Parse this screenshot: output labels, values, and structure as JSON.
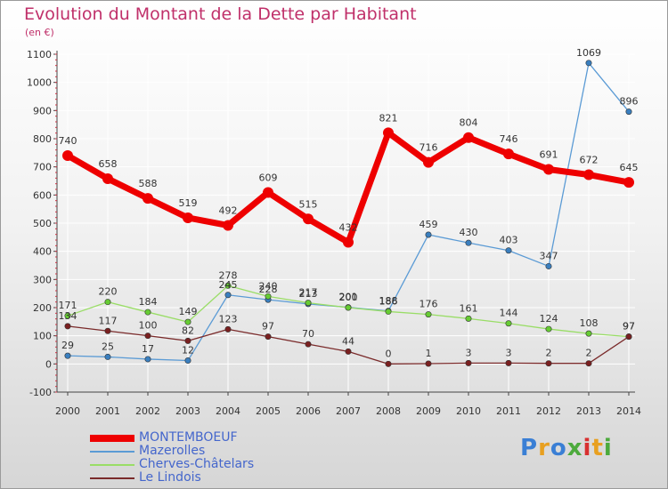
{
  "header": {
    "title": "Evolution du Montant de la Dette par Habitant",
    "subtitle": "(en €)"
  },
  "logo": {
    "text": "Proxiti",
    "colors": [
      "#3a7fd5",
      "#e8a020",
      "#3a7fd5",
      "#4caa3c",
      "#d83030",
      "#e8a020",
      "#4caa3c"
    ]
  },
  "colors": {
    "title": "#c0306a",
    "legend_text": "#4466cc",
    "axis": "#444444",
    "grid": "#ffffff"
  },
  "chart_data": {
    "type": "line",
    "title": "Evolution du Montant de la Dette par Habitant",
    "subtitle": "(en €)",
    "x": [
      "2000",
      "2001",
      "2002",
      "2003",
      "2004",
      "2005",
      "2006",
      "2007",
      "2008",
      "2009",
      "2010",
      "2011",
      "2012",
      "2013",
      "2014"
    ],
    "ylim": [
      -100,
      1100
    ],
    "yticks": [
      -100,
      0,
      100,
      200,
      300,
      400,
      500,
      600,
      700,
      800,
      900,
      1000,
      1100
    ],
    "grid": true,
    "legend_position": "bottom-left",
    "series": [
      {
        "name": "MONTEMBOEUF",
        "color": "#ee0000",
        "marker": "#ee0000",
        "thick": true,
        "values": [
          740,
          658,
          588,
          519,
          492,
          609,
          515,
          432,
          821,
          716,
          804,
          746,
          691,
          672,
          645
        ]
      },
      {
        "name": "Mazerolles",
        "color": "#5b9bd5",
        "marker": "#3a7fbf",
        "values": [
          29,
          25,
          17,
          12,
          245,
          228,
          213,
          201,
          188,
          459,
          430,
          403,
          347,
          1069,
          896
        ]
      },
      {
        "name": "Cherves-Châtelars",
        "color": "#99dd66",
        "marker": "#66cc33",
        "values": [
          171,
          220,
          184,
          149,
          278,
          240,
          217,
          200,
          186,
          176,
          161,
          144,
          124,
          108,
          97
        ]
      },
      {
        "name": "Le Lindois",
        "color": "#7a2a2a",
        "marker": "#7a2020",
        "values": [
          134,
          117,
          100,
          82,
          123,
          97,
          70,
          44,
          0,
          1,
          3,
          3,
          2,
          2,
          97
        ]
      }
    ]
  }
}
